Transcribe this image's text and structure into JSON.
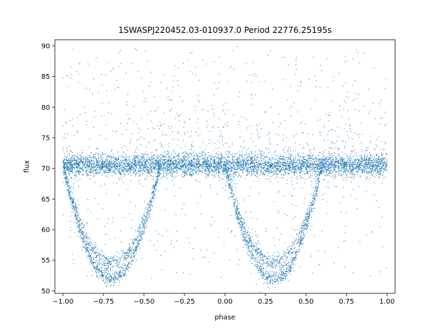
{
  "chart_data": {
    "type": "scatter",
    "title": "1SWASPJ220452.03-010937.0 Period 22776.25195s",
    "xlabel": "phase",
    "ylabel": "flux",
    "xlim": [
      -1.05,
      1.05
    ],
    "ylim": [
      49.6,
      91.0
    ],
    "xticks": [
      -1.0,
      -0.75,
      -0.5,
      -0.25,
      0.0,
      0.25,
      0.5,
      0.75,
      1.0
    ],
    "xtick_labels": [
      "−1.00",
      "−0.75",
      "−0.50",
      "−0.25",
      "0.00",
      "0.25",
      "0.50",
      "0.75",
      "1.00"
    ],
    "yticks": [
      50,
      55,
      60,
      65,
      70,
      75,
      80,
      85,
      90
    ],
    "ytick_labels": [
      "50",
      "55",
      "60",
      "65",
      "70",
      "75",
      "80",
      "85",
      "90"
    ],
    "grid": false,
    "marker_color": "#1f77b4",
    "light_curve": {
      "baseline_flux": 70.5,
      "baseline_scatter": 0.9,
      "eclipse_centers": [
        -0.7,
        0.3
      ],
      "eclipse_half_width": 0.3,
      "eclipse_min_flux": 52.0,
      "secondary_track_min_flux": 54.5
    },
    "x": [
      -1.0,
      -0.95,
      -0.9,
      -0.85,
      -0.8,
      -0.75,
      -0.7,
      -0.65,
      -0.6,
      -0.55,
      -0.5,
      -0.45,
      -0.4,
      -0.35,
      -0.3,
      -0.25,
      -0.2,
      -0.15,
      -0.1,
      -0.05,
      0.0,
      0.05,
      0.1,
      0.15,
      0.2,
      0.25,
      0.3,
      0.35,
      0.4,
      0.45,
      0.5,
      0.55,
      0.6,
      0.65,
      0.7,
      0.75,
      0.8,
      0.85,
      0.9,
      0.95,
      1.0
    ],
    "y": [
      70.5,
      66.0,
      62.0,
      58.5,
      55.5,
      53.0,
      52.0,
      53.5,
      56.5,
      60.0,
      64.0,
      67.5,
      70.5,
      70.5,
      70.5,
      70.5,
      70.5,
      70.5,
      70.5,
      70.5,
      70.5,
      66.0,
      62.0,
      58.5,
      55.5,
      53.0,
      52.0,
      53.5,
      56.5,
      60.0,
      64.0,
      67.5,
      70.5,
      70.5,
      70.5,
      70.5,
      70.5,
      70.5,
      70.5,
      70.5,
      70.5
    ]
  }
}
